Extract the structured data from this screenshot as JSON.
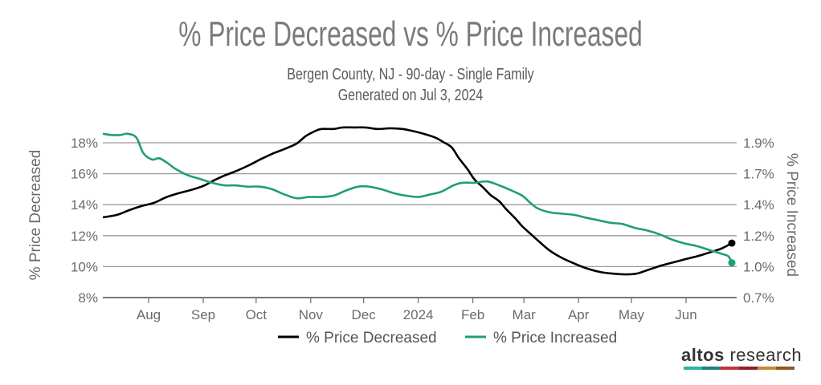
{
  "chart_data": {
    "type": "line",
    "title": "% Price Decreased vs % Price Increased",
    "subtitle": "Bergen County, NJ - 90-day - Single Family",
    "generated": "Generated on Jul 3, 2024",
    "ylabel_left": "% Price Decreased",
    "ylabel_right": "% Price Increased",
    "ylim_left": [
      8,
      18.9
    ],
    "yticks_left": [
      {
        "v": 8,
        "label": "8%"
      },
      {
        "v": 10,
        "label": "10%"
      },
      {
        "v": 12,
        "label": "12%"
      },
      {
        "v": 14,
        "label": "14%"
      },
      {
        "v": 16,
        "label": "16%"
      },
      {
        "v": 18,
        "label": "18%"
      }
    ],
    "ylim_right": [
      0.72,
      2.03
    ],
    "yticks_right": [
      {
        "v": 0.72,
        "label": "0.7%"
      },
      {
        "v": 0.96,
        "label": "1.0%"
      },
      {
        "v": 1.2,
        "label": "1.2%"
      },
      {
        "v": 1.44,
        "label": "1.4%"
      },
      {
        "v": 1.68,
        "label": "1.7%"
      },
      {
        "v": 1.92,
        "label": "1.9%"
      }
    ],
    "xlim": [
      "2023-07-06",
      "2024-06-27"
    ],
    "xticks": [
      {
        "date": "2023-08-01",
        "label": "Aug"
      },
      {
        "date": "2023-09-01",
        "label": "Sep"
      },
      {
        "date": "2023-10-01",
        "label": "Oct"
      },
      {
        "date": "2023-11-01",
        "label": "Nov"
      },
      {
        "date": "2023-12-01",
        "label": "Dec"
      },
      {
        "date": "2024-01-01",
        "label": "2024"
      },
      {
        "date": "2024-02-01",
        "label": "Feb"
      },
      {
        "date": "2024-03-01",
        "label": "Mar"
      },
      {
        "date": "2024-04-01",
        "label": "Apr"
      },
      {
        "date": "2024-05-01",
        "label": "May"
      },
      {
        "date": "2024-06-01",
        "label": "Jun"
      }
    ],
    "grid": true,
    "legend_position": "bottom-center",
    "series": [
      {
        "name": "% Price Decreased",
        "axis": "left",
        "color": "#000000",
        "end_marker": true,
        "points": [
          [
            "2023-07-06",
            13.18
          ],
          [
            "2023-07-14",
            13.34
          ],
          [
            "2023-07-21",
            13.65
          ],
          [
            "2023-07-28",
            13.91
          ],
          [
            "2023-08-04",
            14.12
          ],
          [
            "2023-08-11",
            14.48
          ],
          [
            "2023-08-18",
            14.74
          ],
          [
            "2023-08-25",
            14.95
          ],
          [
            "2023-09-01",
            15.21
          ],
          [
            "2023-09-07",
            15.57
          ],
          [
            "2023-09-13",
            15.88
          ],
          [
            "2023-09-20",
            16.19
          ],
          [
            "2023-09-27",
            16.55
          ],
          [
            "2023-10-04",
            16.96
          ],
          [
            "2023-10-11",
            17.33
          ],
          [
            "2023-10-17",
            17.59
          ],
          [
            "2023-10-24",
            17.95
          ],
          [
            "2023-10-29",
            18.42
          ],
          [
            "2023-11-03",
            18.73
          ],
          [
            "2023-11-07",
            18.89
          ],
          [
            "2023-11-14",
            18.89
          ],
          [
            "2023-11-19",
            18.99
          ],
          [
            "2023-11-26",
            18.99
          ],
          [
            "2023-12-02",
            18.99
          ],
          [
            "2023-12-09",
            18.89
          ],
          [
            "2023-12-16",
            18.94
          ],
          [
            "2023-12-23",
            18.89
          ],
          [
            "2023-12-28",
            18.78
          ],
          [
            "2024-01-04",
            18.58
          ],
          [
            "2024-01-11",
            18.32
          ],
          [
            "2024-01-15",
            18.06
          ],
          [
            "2024-01-20",
            17.7
          ],
          [
            "2024-01-24",
            17.02
          ],
          [
            "2024-01-29",
            16.29
          ],
          [
            "2024-02-02",
            15.62
          ],
          [
            "2024-02-07",
            15.1
          ],
          [
            "2024-02-11",
            14.63
          ],
          [
            "2024-02-16",
            14.22
          ],
          [
            "2024-02-20",
            13.7
          ],
          [
            "2024-02-25",
            13.13
          ],
          [
            "2024-02-29",
            12.61
          ],
          [
            "2024-03-05",
            12.09
          ],
          [
            "2024-03-10",
            11.58
          ],
          [
            "2024-03-16",
            11.01
          ],
          [
            "2024-03-23",
            10.54
          ],
          [
            "2024-03-30",
            10.18
          ],
          [
            "2024-04-06",
            9.87
          ],
          [
            "2024-04-13",
            9.66
          ],
          [
            "2024-04-20",
            9.55
          ],
          [
            "2024-04-27",
            9.5
          ],
          [
            "2024-05-04",
            9.55
          ],
          [
            "2024-05-11",
            9.81
          ],
          [
            "2024-05-18",
            10.07
          ],
          [
            "2024-05-25",
            10.28
          ],
          [
            "2024-06-01",
            10.49
          ],
          [
            "2024-06-08",
            10.69
          ],
          [
            "2024-06-14",
            10.9
          ],
          [
            "2024-06-21",
            11.16
          ],
          [
            "2024-06-27",
            11.52
          ]
        ]
      },
      {
        "name": "% Price Increased",
        "axis": "right",
        "color": "#1f9e78",
        "end_marker": true,
        "points": [
          [
            "2023-07-06",
            1.99
          ],
          [
            "2023-07-11",
            1.98
          ],
          [
            "2023-07-16",
            1.98
          ],
          [
            "2023-07-20",
            1.99
          ],
          [
            "2023-07-25",
            1.96
          ],
          [
            "2023-07-29",
            1.84
          ],
          [
            "2023-08-03",
            1.79
          ],
          [
            "2023-08-07",
            1.8
          ],
          [
            "2023-08-12",
            1.76
          ],
          [
            "2023-08-16",
            1.72
          ],
          [
            "2023-08-23",
            1.67
          ],
          [
            "2023-08-30",
            1.64
          ],
          [
            "2023-09-06",
            1.61
          ],
          [
            "2023-09-13",
            1.59
          ],
          [
            "2023-09-19",
            1.59
          ],
          [
            "2023-09-26",
            1.58
          ],
          [
            "2023-10-03",
            1.58
          ],
          [
            "2023-10-10",
            1.56
          ],
          [
            "2023-10-17",
            1.52
          ],
          [
            "2023-10-24",
            1.49
          ],
          [
            "2023-10-31",
            1.5
          ],
          [
            "2023-11-07",
            1.5
          ],
          [
            "2023-11-14",
            1.51
          ],
          [
            "2023-11-21",
            1.55
          ],
          [
            "2023-11-28",
            1.58
          ],
          [
            "2023-12-04",
            1.58
          ],
          [
            "2023-12-11",
            1.56
          ],
          [
            "2023-12-18",
            1.53
          ],
          [
            "2023-12-25",
            1.51
          ],
          [
            "2024-01-01",
            1.5
          ],
          [
            "2024-01-08",
            1.52
          ],
          [
            "2024-01-14",
            1.54
          ],
          [
            "2024-01-21",
            1.59
          ],
          [
            "2024-01-26",
            1.61
          ],
          [
            "2024-02-02",
            1.61
          ],
          [
            "2024-02-09",
            1.62
          ],
          [
            "2024-02-16",
            1.59
          ],
          [
            "2024-02-23",
            1.55
          ],
          [
            "2024-02-29",
            1.51
          ],
          [
            "2024-03-05",
            1.45
          ],
          [
            "2024-03-09",
            1.41
          ],
          [
            "2024-03-16",
            1.38
          ],
          [
            "2024-03-23",
            1.37
          ],
          [
            "2024-03-30",
            1.36
          ],
          [
            "2024-04-05",
            1.34
          ],
          [
            "2024-04-12",
            1.32
          ],
          [
            "2024-04-19",
            1.3
          ],
          [
            "2024-04-26",
            1.29
          ],
          [
            "2024-05-03",
            1.26
          ],
          [
            "2024-05-10",
            1.24
          ],
          [
            "2024-05-17",
            1.21
          ],
          [
            "2024-05-24",
            1.17
          ],
          [
            "2024-05-31",
            1.14
          ],
          [
            "2024-06-07",
            1.12
          ],
          [
            "2024-06-14",
            1.09
          ],
          [
            "2024-06-21",
            1.06
          ],
          [
            "2024-06-25",
            1.04
          ],
          [
            "2024-06-27",
            0.99
          ]
        ]
      }
    ]
  },
  "branding": {
    "logo_bold": "altos",
    "logo_light": " research",
    "bar_colors": [
      "#2bb3a8",
      "#1f8478",
      "#c9303c",
      "#8e1f2a",
      "#c48a33",
      "#8a5a22"
    ]
  }
}
